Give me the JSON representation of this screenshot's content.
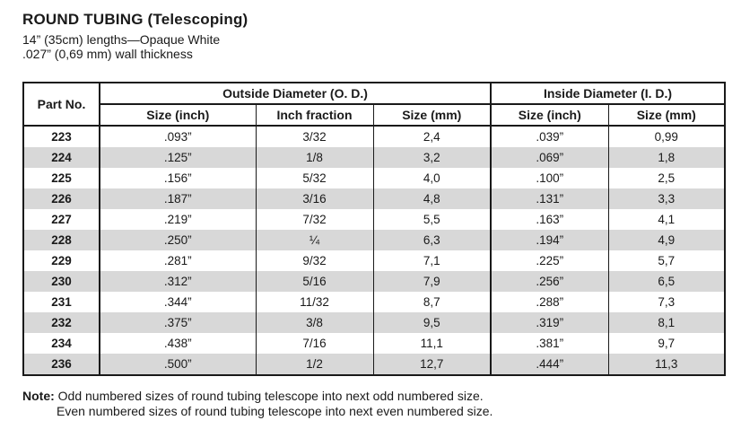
{
  "page": {
    "title": "ROUND TUBING (Telescoping)",
    "subtitle_lengths": "14” (35cm) lengths—Opaque White",
    "subtitle_wall": ".027” (0,69 mm) wall thickness"
  },
  "colors": {
    "row_shade": "#d8d8d8",
    "border": "#1a1a1a",
    "text": "#1a1a1a"
  },
  "table": {
    "part_header": "Part No.",
    "group_outside": "Outside Diameter (O. D.)",
    "group_inside": "Inside Diameter (I. D.)",
    "sub_headers": [
      "Size (inch)",
      "Inch fraction",
      "Size (mm)",
      "Size (inch)",
      "Size (mm)"
    ],
    "rows": [
      {
        "part": "223",
        "od_inch": ".093”",
        "od_fraction": "3/32",
        "od_mm": "2,4",
        "id_inch": ".039”",
        "id_mm": "0,99"
      },
      {
        "part": "224",
        "od_inch": ".125”",
        "od_fraction": "1/8",
        "od_mm": "3,2",
        "id_inch": ".069”",
        "id_mm": "1,8"
      },
      {
        "part": "225",
        "od_inch": ".156”",
        "od_fraction": "5/32",
        "od_mm": "4,0",
        "id_inch": ".100”",
        "id_mm": "2,5"
      },
      {
        "part": "226",
        "od_inch": ".187”",
        "od_fraction": "3/16",
        "od_mm": "4,8",
        "id_inch": ".131”",
        "id_mm": "3,3"
      },
      {
        "part": "227",
        "od_inch": ".219”",
        "od_fraction": "7/32",
        "od_mm": "5,5",
        "id_inch": ".163”",
        "id_mm": "4,1"
      },
      {
        "part": "228",
        "od_inch": ".250”",
        "od_fraction": "¼",
        "od_mm": "6,3",
        "id_inch": ".194”",
        "id_mm": "4,9"
      },
      {
        "part": "229",
        "od_inch": ".281”",
        "od_fraction": "9/32",
        "od_mm": "7,1",
        "id_inch": ".225”",
        "id_mm": "5,7"
      },
      {
        "part": "230",
        "od_inch": ".312”",
        "od_fraction": "5/16",
        "od_mm": "7,9",
        "id_inch": ".256”",
        "id_mm": "6,5"
      },
      {
        "part": "231",
        "od_inch": ".344”",
        "od_fraction": "11/32",
        "od_mm": "8,7",
        "id_inch": ".288”",
        "id_mm": "7,3"
      },
      {
        "part": "232",
        "od_inch": ".375”",
        "od_fraction": "3/8",
        "od_mm": "9,5",
        "id_inch": ".319”",
        "id_mm": "8,1"
      },
      {
        "part": "234",
        "od_inch": ".438”",
        "od_fraction": "7/16",
        "od_mm": "11,1",
        "id_inch": ".381”",
        "id_mm": "9,7"
      },
      {
        "part": "236",
        "od_inch": ".500”",
        "od_fraction": "1/2",
        "od_mm": "12,7",
        "id_inch": ".444”",
        "id_mm": "11,3"
      }
    ]
  },
  "note": {
    "label": "Note:",
    "text": "Odd numbered sizes of round tubing telescope into next odd numbered size. Even numbered sizes of round tubing telescope into next even numbered size."
  }
}
